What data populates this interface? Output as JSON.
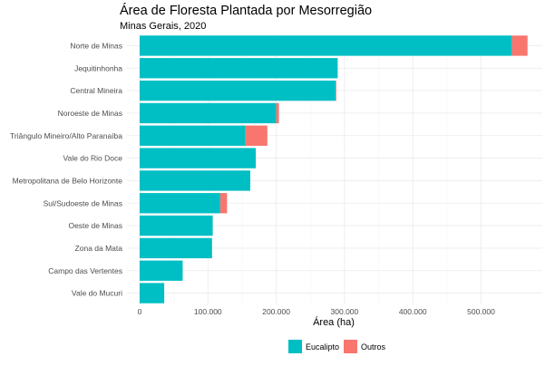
{
  "chart_data": {
    "type": "bar",
    "orientation": "horizontal",
    "stacked": true,
    "title": "Área de Floresta Plantada por Mesorregião",
    "subtitle": "Minas Gerais, 2020",
    "xlabel": "Área (ha)",
    "ylabel": "",
    "xlim": [
      0,
      580000
    ],
    "xticks": [
      0,
      100000,
      200000,
      300000,
      400000,
      500000
    ],
    "xtick_labels": [
      "0",
      "100.000",
      "200.000",
      "300.000",
      "400.000",
      "500.000"
    ],
    "grid": true,
    "legend_position": "bottom",
    "categories": [
      "Norte de Minas",
      "Jequitinhonha",
      "Central Mineira",
      "Noroeste de Minas",
      "Triângulo Mineiro/Alto Paranaíba",
      "Vale do Rio Doce",
      "Metropolitana de Belo Horizonte",
      "Sul/Sudoeste de Minas",
      "Oeste de Minas",
      "Zona da Mata",
      "Campo das Vertentes",
      "Vale do Mucuri"
    ],
    "series": [
      {
        "name": "Eucalipto",
        "color": "#00BFC4",
        "values": [
          545000,
          290000,
          287000,
          200000,
          155000,
          170000,
          162000,
          118000,
          107000,
          106000,
          63000,
          36000
        ]
      },
      {
        "name": "Outros",
        "color": "#F8766D",
        "values": [
          23000,
          0,
          1000,
          4000,
          32000,
          0,
          0,
          10000,
          0,
          0,
          0,
          0
        ]
      }
    ]
  }
}
